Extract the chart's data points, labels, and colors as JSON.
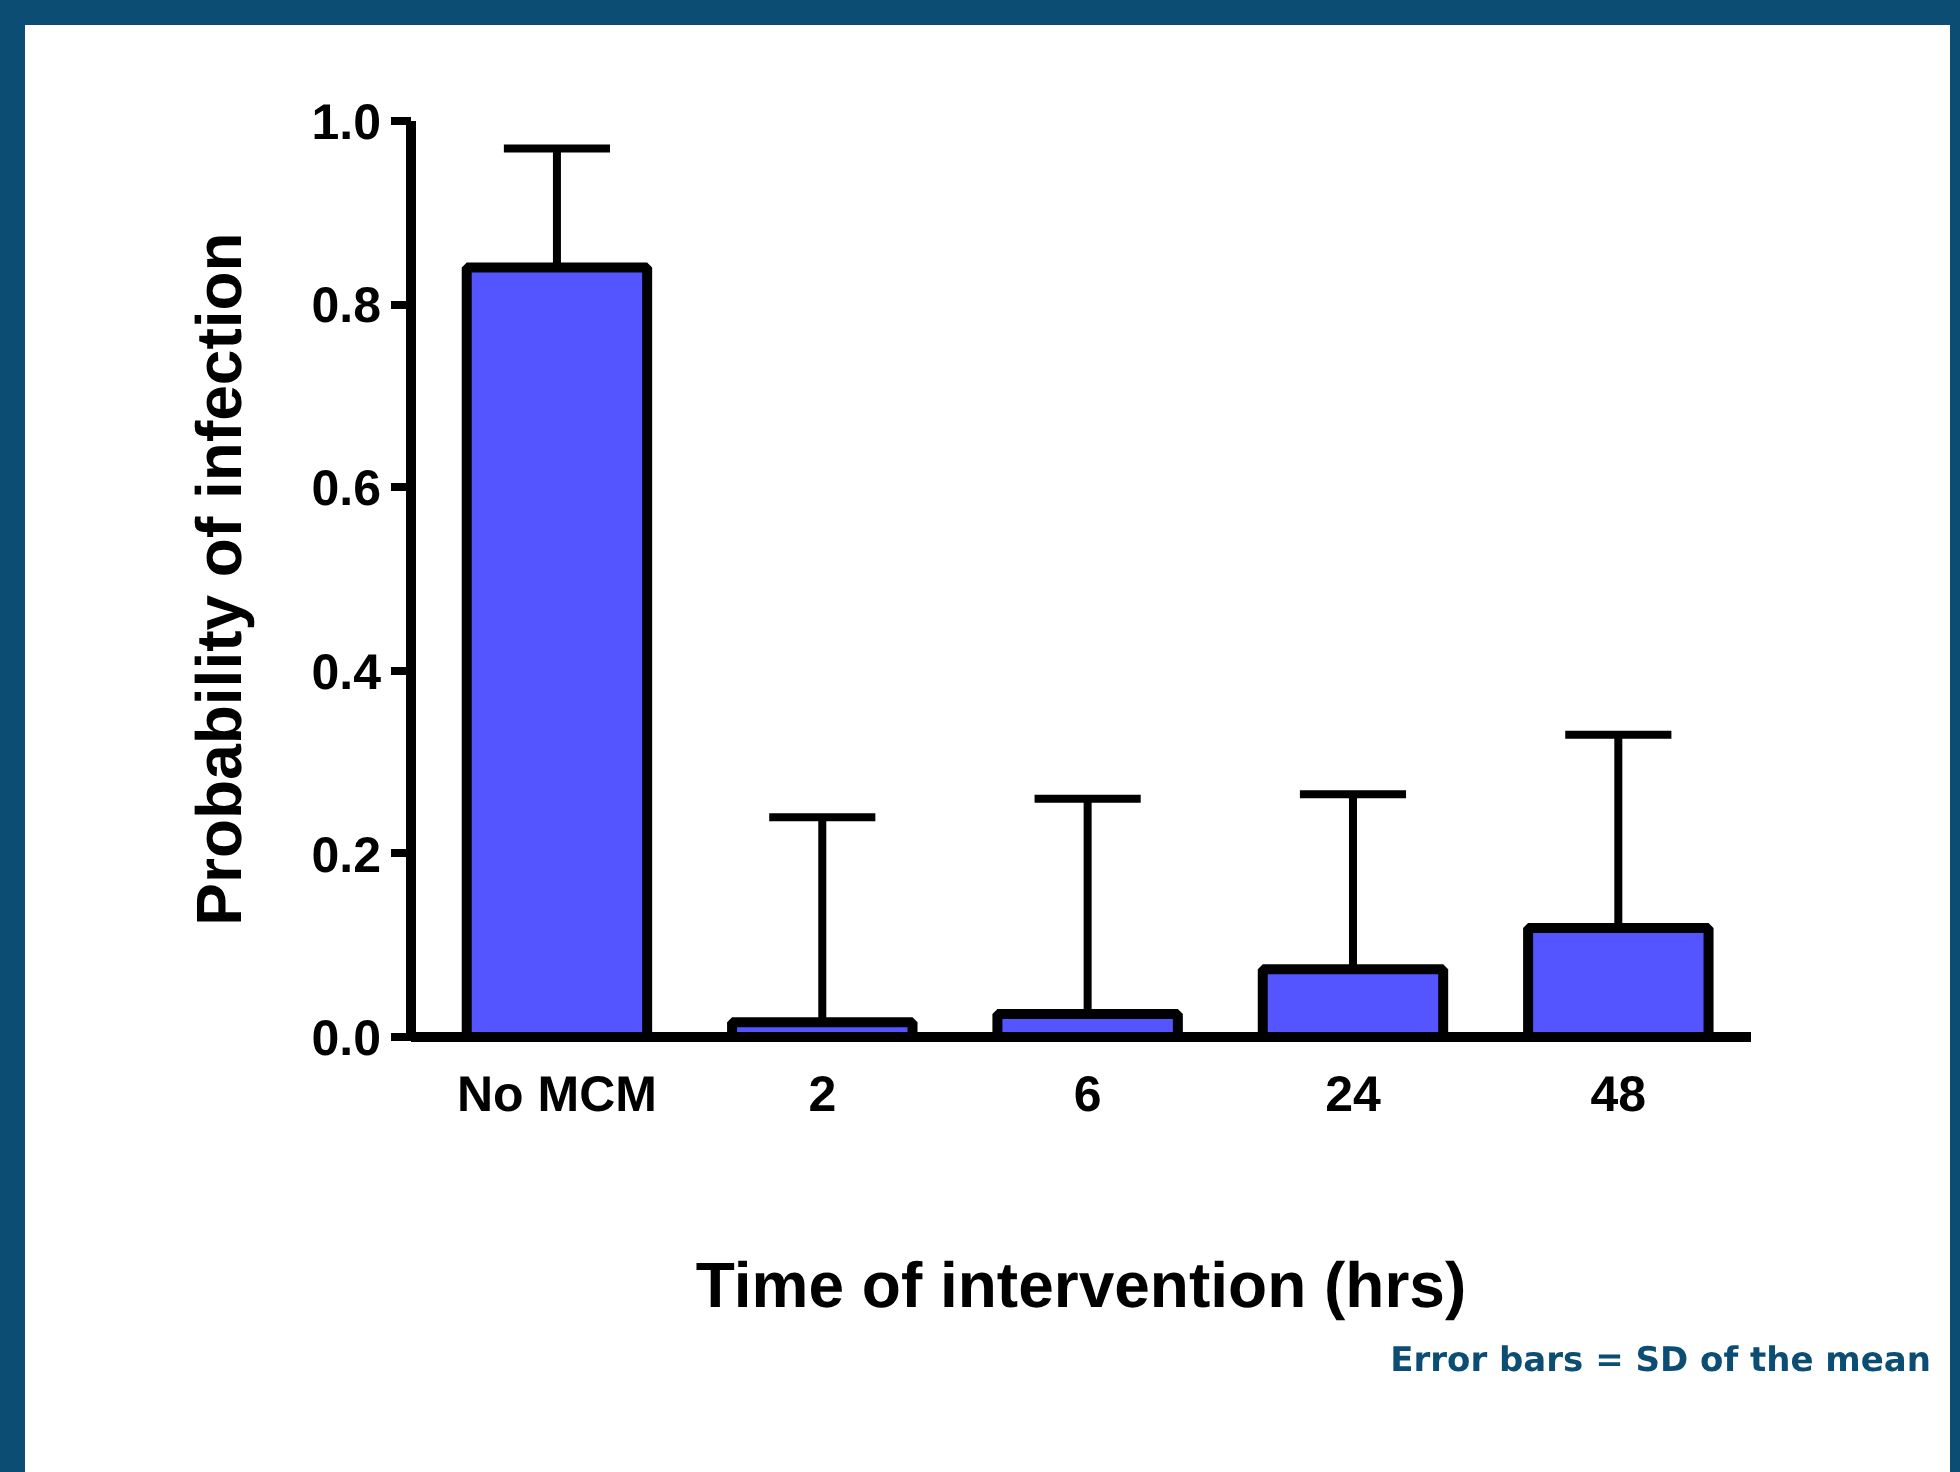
{
  "chart_data": {
    "type": "bar",
    "xlabel": "Time of intervention (hrs)",
    "ylabel": "Probability of infection",
    "categories": [
      "No MCM",
      "2",
      "6",
      "24",
      "48"
    ],
    "values": [
      0.84,
      0.016,
      0.025,
      0.074,
      0.119
    ],
    "errors": [
      [
        0.84,
        0.97
      ],
      [
        0.016,
        0.24
      ],
      [
        0.025,
        0.26
      ],
      [
        0.074,
        0.265
      ],
      [
        0.119,
        0.33
      ]
    ],
    "color": "#5555ff",
    "ylim": [
      0,
      1.0
    ],
    "yticks": [
      {
        "value": 0,
        "label": "0.0"
      },
      0.2,
      0.4,
      0.6,
      0.8,
      {
        "value": 1.0,
        "label": "1.0"
      }
    ],
    "grid": false,
    "annotations": [
      "Error bars = SD of the mean"
    ]
  }
}
